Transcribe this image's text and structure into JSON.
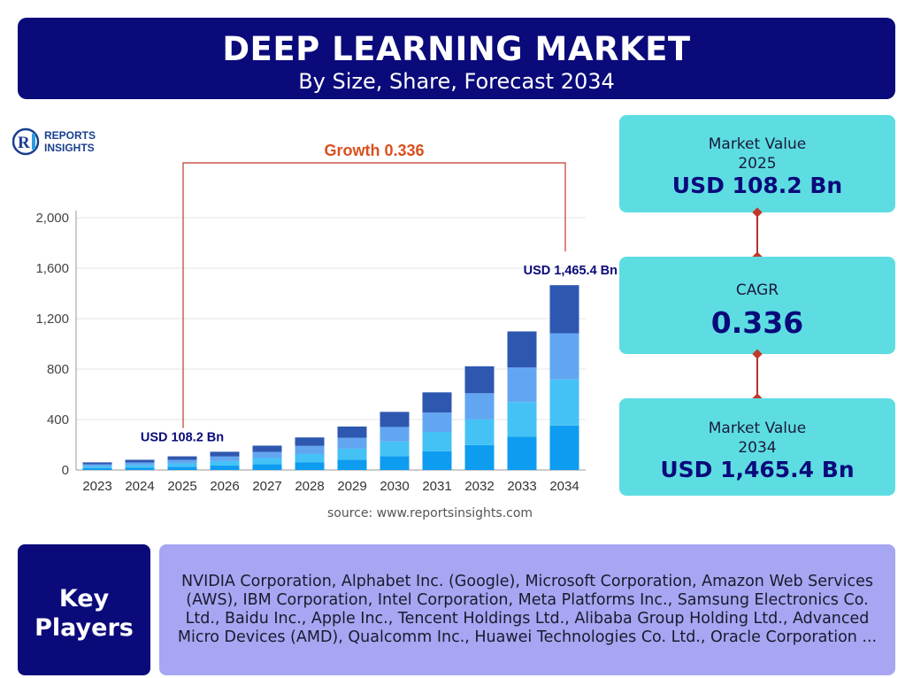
{
  "header": {
    "title": "DEEP LEARNING MARKET",
    "subtitle": "By Size, Share, Forecast 2034"
  },
  "logo": {
    "line1": "REPORTS",
    "line2": "INSIGHTS",
    "mark": "RI"
  },
  "chart_data": {
    "type": "bar",
    "stacked": true,
    "categories": [
      "2023",
      "2024",
      "2025",
      "2026",
      "2027",
      "2028",
      "2029",
      "2030",
      "2031",
      "2032",
      "2033",
      "2034"
    ],
    "totals": [
      60.6,
      81.0,
      108.2,
      144.6,
      193.2,
      258.1,
      344.8,
      460.7,
      615.5,
      822.3,
      1098.6,
      1465.4
    ],
    "segment_shares": [
      0.24,
      0.25,
      0.25,
      0.26
    ],
    "segment_colors": [
      "#0d9cf0",
      "#45c2f5",
      "#62a6f2",
      "#2e57b0"
    ],
    "yticks": [
      0,
      400,
      800,
      1200,
      1600,
      2000
    ],
    "ytick_labels": [
      "0",
      "400",
      "800",
      "1,200",
      "1,600",
      "2,000"
    ],
    "ylim": [
      0,
      2000
    ],
    "grid": true,
    "annotations": {
      "start_label": "USD 108.2 Bn",
      "end_label": "USD 1,465.4 Bn",
      "growth_label": "Growth 0.336"
    }
  },
  "source": "source: www.reportsinsights.com",
  "cards": [
    {
      "label": "Market Value",
      "year": "2025",
      "value": "USD 108.2 Bn"
    },
    {
      "label": "CAGR",
      "value": "0.336"
    },
    {
      "label": "Market Value",
      "year": "2034",
      "value": "USD 1,465.4 Bn"
    }
  ],
  "key_players": {
    "label_line1": "Key",
    "label_line2": "Players",
    "text": "NVIDIA Corporation, Alphabet Inc. (Google), Microsoft Corporation, Amazon Web Services (AWS), IBM Corporation, Intel Corporation, Meta Platforms Inc., Samsung Electronics Co. Ltd., Baidu Inc., Apple Inc., Tencent Holdings Ltd., Alibaba Group Holding Ltd., Advanced Micro Devices (AMD), Qualcomm Inc., Huawei Technologies Co. Ltd., Oracle Corporation ..."
  },
  "colors": {
    "navy": "#0a0a7a",
    "cyan_card": "#5ddde2",
    "lavender": "#a6a6f2",
    "growth_red": "#d9501e"
  }
}
